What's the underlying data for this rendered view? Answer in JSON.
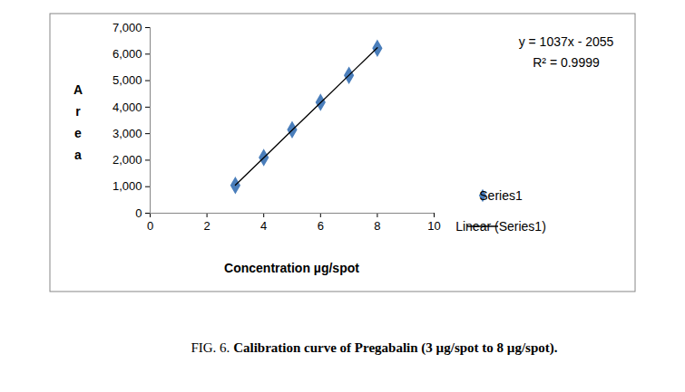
{
  "chart_data": {
    "type": "scatter",
    "xlabel": "Concentration µg/spot",
    "ylabel": "Area",
    "x": [
      3,
      4,
      5,
      6,
      7,
      8
    ],
    "series": [
      {
        "name": "Series1",
        "type": "scatter",
        "marker": "diamond",
        "color": "#4a7ebb",
        "values": [
          1050,
          2100,
          3150,
          4180,
          5200,
          6220
        ]
      },
      {
        "name": "Linear (Series1)",
        "type": "line",
        "line_style": "solid",
        "color": "#000000",
        "values": [
          1056,
          2093,
          3130,
          4167,
          5204,
          6241
        ]
      }
    ],
    "annotations": [
      "y = 1037x - 2055",
      "R² = 0.9999"
    ],
    "xlim": [
      0,
      10
    ],
    "xticks": [
      0,
      2,
      4,
      6,
      8,
      10
    ],
    "ylim": [
      0,
      7000
    ],
    "yticks": [
      0,
      1000,
      2000,
      3000,
      4000,
      5000,
      6000,
      7000
    ],
    "grid": false,
    "legend": "right",
    "caption": {
      "label": "FIG. 6.",
      "text": "Calibration curve of Pregabalin (3 µg/spot to 8 µg/spot)."
    }
  }
}
